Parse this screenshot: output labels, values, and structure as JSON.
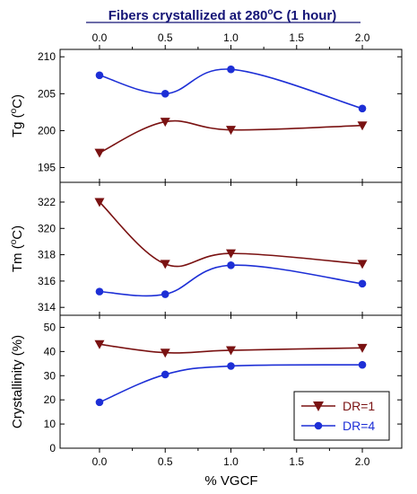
{
  "colors": {
    "dr1": "#7a1212",
    "dr4": "#1d2fd6",
    "title": "#141476",
    "axis": "#000000"
  },
  "top_axis": {
    "title_main": "Fibers crystallized at 280",
    "title_deg": "o",
    "title_tail": "C (1 hour)",
    "ticks": [
      "0.0",
      "0.5",
      "1.0",
      "1.5",
      "2.0"
    ]
  },
  "x_axis": {
    "label": "% VGCF",
    "ticks": [
      "0.0",
      "0.5",
      "1.0",
      "1.5",
      "2.0"
    ],
    "range": [
      -0.3,
      2.3
    ]
  },
  "chart_data": [
    {
      "type": "scatter",
      "panel": "tg",
      "ylabel_main": "Tg (",
      "ylabel_deg": "o",
      "ylabel_tail": "C)",
      "ylim": [
        193,
        211
      ],
      "yticks": [
        "210",
        "205",
        "200",
        "195"
      ],
      "x": [
        0.0,
        0.5,
        1.0,
        2.0
      ],
      "series": [
        {
          "name": "DR=1",
          "values": [
            197.0,
            201.2,
            200.1,
            200.7
          ]
        },
        {
          "name": "DR=4",
          "values": [
            207.5,
            205.0,
            208.3,
            203.0
          ]
        }
      ]
    },
    {
      "type": "scatter",
      "panel": "tm",
      "ylabel_main": "Tm (",
      "ylabel_deg": "o",
      "ylabel_tail": "C)",
      "ylim": [
        313.4,
        323.5
      ],
      "yticks": [
        "322",
        "320",
        "318",
        "316",
        "314"
      ],
      "x": [
        0.0,
        0.5,
        1.0,
        2.0
      ],
      "series": [
        {
          "name": "DR=1",
          "values": [
            322.0,
            317.3,
            318.1,
            317.3
          ]
        },
        {
          "name": "DR=4",
          "values": [
            315.2,
            315.0,
            317.2,
            315.8
          ]
        }
      ]
    },
    {
      "type": "scatter",
      "panel": "crystallinity",
      "ylabel": "Crystallinity (%)",
      "ylim": [
        0,
        55
      ],
      "yticks": [
        "50",
        "40",
        "30",
        "20",
        "10",
        "0"
      ],
      "x": [
        0.0,
        0.5,
        1.0,
        2.0
      ],
      "series": [
        {
          "name": "DR=1",
          "values": [
            43.0,
            39.5,
            40.5,
            41.5
          ]
        },
        {
          "name": "DR=4",
          "values": [
            19.0,
            30.5,
            34.0,
            34.5
          ]
        }
      ],
      "legend_position": "bottom-right"
    }
  ],
  "legend": [
    {
      "label": "DR=1",
      "marker": "triangle-down"
    },
    {
      "label": "DR=4",
      "marker": "circle"
    }
  ]
}
